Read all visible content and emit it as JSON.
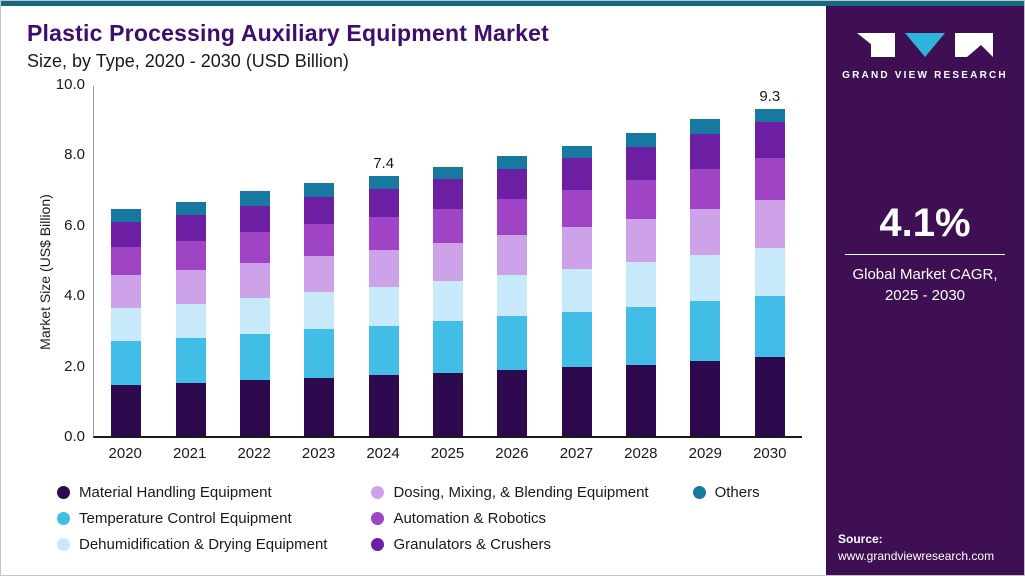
{
  "header": {
    "title": "Plastic Processing Auxiliary Equipment Market",
    "subtitle": "Size, by Type, 2020 - 2030 (USD Billion)"
  },
  "chart_data": {
    "type": "bar",
    "stacked": true,
    "title": "Plastic Processing Auxiliary Equipment Market Size, by Type, 2020 - 2030 (USD Billion)",
    "xlabel": "",
    "ylabel": "Market Size (US$ Billion)",
    "ylim": [
      0,
      10
    ],
    "yticks": [
      "0.0",
      "2.0",
      "4.0",
      "6.0",
      "8.0",
      "10.0"
    ],
    "grid": false,
    "legend_position": "bottom",
    "categories": [
      "2020",
      "2021",
      "2022",
      "2023",
      "2024",
      "2025",
      "2026",
      "2027",
      "2028",
      "2029",
      "2030"
    ],
    "series": [
      {
        "name": "Material Handling Equipment",
        "color": "#2d0a4e",
        "values": [
          1.45,
          1.5,
          1.58,
          1.65,
          1.72,
          1.8,
          1.88,
          1.95,
          2.03,
          2.13,
          2.25
        ]
      },
      {
        "name": "Temperature Control Equipment",
        "color": "#41bde8",
        "values": [
          1.25,
          1.28,
          1.32,
          1.38,
          1.42,
          1.47,
          1.52,
          1.58,
          1.63,
          1.7,
          1.72
        ]
      },
      {
        "name": "Dehumidification & Drying Equipment",
        "color": "#c8e9f9",
        "values": [
          0.95,
          0.98,
          1.02,
          1.05,
          1.08,
          1.12,
          1.17,
          1.22,
          1.27,
          1.32,
          1.38
        ]
      },
      {
        "name": "Dosing, Mixing, & Blending Equipment",
        "color": "#cda2e8",
        "values": [
          0.93,
          0.96,
          1.0,
          1.03,
          1.06,
          1.1,
          1.15,
          1.19,
          1.24,
          1.3,
          1.35
        ]
      },
      {
        "name": "Automation & Robotics",
        "color": "#9e44c4",
        "values": [
          0.8,
          0.83,
          0.87,
          0.9,
          0.93,
          0.97,
          1.01,
          1.05,
          1.1,
          1.15,
          1.2
        ]
      },
      {
        "name": "Granulators & Crushers",
        "color": "#6d1fa4",
        "values": [
          0.7,
          0.72,
          0.75,
          0.78,
          0.8,
          0.84,
          0.87,
          0.91,
          0.95,
          0.99,
          1.03
        ]
      },
      {
        "name": "Others",
        "color": "#1879a0",
        "values": [
          0.37,
          0.38,
          0.41,
          0.41,
          0.39,
          0.35,
          0.35,
          0.35,
          0.38,
          0.41,
          0.37
        ]
      }
    ],
    "totals": [
      6.45,
      6.65,
      6.95,
      7.2,
      7.4,
      7.65,
      7.95,
      8.25,
      8.6,
      9.0,
      9.3
    ],
    "bar_labels": {
      "2024": "7.4",
      "2030": "9.3"
    }
  },
  "legend": {
    "columns": [
      [
        0,
        1,
        2
      ],
      [
        3,
        4,
        5
      ],
      [
        6
      ]
    ]
  },
  "sidebar": {
    "logo_text": "GRAND VIEW RESEARCH",
    "cagr_value": "4.1%",
    "cagr_label_line1": "Global Market CAGR,",
    "cagr_label_line2": "2025 - 2030",
    "source_label": "Source:",
    "source_url": "www.grandviewresearch.com",
    "bg_color": "#3e1053",
    "accent_color": "#2fb4d9"
  },
  "colors": {
    "topbar": "#156b84"
  }
}
